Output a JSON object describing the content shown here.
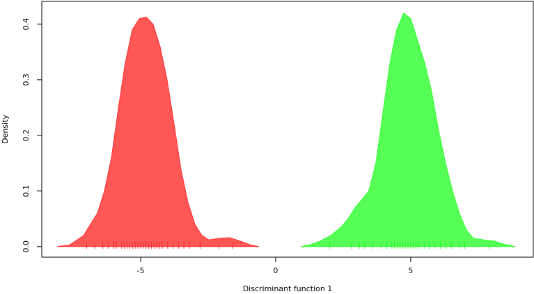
{
  "chart_data": {
    "type": "density",
    "x_label": "Discriminant function 1",
    "y_label": "Density",
    "xlim": [
      -8.66,
      9.54
    ],
    "ylim": [
      -0.019,
      0.441
    ],
    "xticks": [
      -5,
      0,
      5
    ],
    "yticks": [
      {
        "value": 0,
        "label": "0.0"
      },
      0.1,
      0.2,
      0.3,
      0.4
    ],
    "series": [
      {
        "color": "#ff4d4d",
        "edge_color": "#ff3030",
        "x": [
          -8.09,
          -7.63,
          -7.11,
          -6.86,
          -6.6,
          -6.34,
          -6.08,
          -5.82,
          -5.57,
          -5.31,
          -5.05,
          -4.79,
          -4.54,
          -4.28,
          -4.02,
          -3.76,
          -3.51,
          -3.25,
          -2.99,
          -2.73,
          -2.47,
          -2.09,
          -1.7,
          -1.31,
          -0.93,
          -0.62
        ],
        "values": [
          0,
          0.003,
          0.02,
          0.04,
          0.06,
          0.1,
          0.16,
          0.25,
          0.33,
          0.39,
          0.41,
          0.413,
          0.4,
          0.36,
          0.3,
          0.22,
          0.14,
          0.08,
          0.04,
          0.02,
          0.012,
          0.015,
          0.016,
          0.01,
          0.003,
          0
        ],
        "rug": [
          -7.0,
          -6.7,
          -6.4,
          -6.2,
          -6.0,
          -5.9,
          -5.7,
          -5.6,
          -5.5,
          -5.4,
          -5.3,
          -5.2,
          -5.1,
          -5.0,
          -4.9,
          -4.8,
          -4.7,
          -4.6,
          -4.5,
          -4.4,
          -4.3,
          -4.2,
          -4.0,
          -3.8,
          -3.6,
          -3.4,
          -3.2,
          -2.8,
          -2.1,
          -1.6
        ]
      },
      {
        "color": "#4dff4d",
        "edge_color": "#30ff30",
        "x": [
          0.93,
          1.26,
          1.65,
          2.04,
          2.42,
          2.68,
          2.94,
          3.2,
          3.45,
          3.71,
          3.97,
          4.23,
          4.48,
          4.74,
          5.0,
          5.26,
          5.52,
          5.77,
          6.03,
          6.29,
          6.55,
          6.8,
          7.06,
          7.32,
          7.71,
          8.09,
          8.48,
          8.87
        ],
        "values": [
          0,
          0.003,
          0.01,
          0.02,
          0.035,
          0.05,
          0.07,
          0.085,
          0.1,
          0.15,
          0.24,
          0.33,
          0.39,
          0.42,
          0.41,
          0.37,
          0.33,
          0.28,
          0.21,
          0.15,
          0.1,
          0.06,
          0.03,
          0.015,
          0.012,
          0.01,
          0.004,
          0
        ],
        "rug": [
          2.0,
          2.8,
          3.1,
          3.3,
          3.6,
          3.9,
          4.1,
          4.3,
          4.4,
          4.5,
          4.6,
          4.7,
          4.8,
          4.9,
          5.0,
          5.1,
          5.2,
          5.3,
          5.5,
          5.7,
          5.9,
          6.1,
          6.3,
          6.5,
          6.8,
          7.0,
          7.9
        ]
      }
    ]
  }
}
